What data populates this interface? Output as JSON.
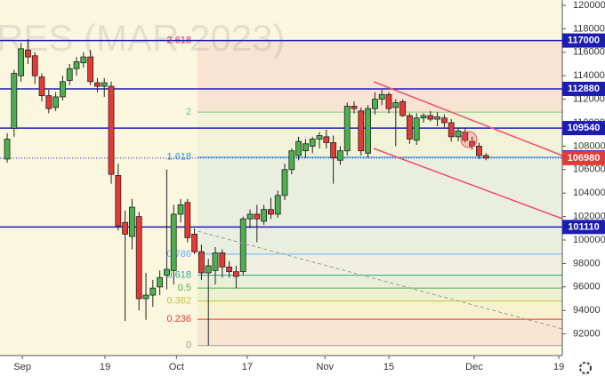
{
  "chart_data": {
    "type": "candlestick",
    "watermark": "RES (MAR 2023)",
    "xlim": [
      -1.03,
      80
    ],
    "xticks": [
      {
        "value": 2.2,
        "label": "Sep"
      },
      {
        "value": 14.1,
        "label": "19"
      },
      {
        "value": 24.4,
        "label": "Oct"
      },
      {
        "value": 34.6,
        "label": "17"
      },
      {
        "value": 45.8,
        "label": "Nov"
      },
      {
        "value": 55.0,
        "label": "15"
      },
      {
        "value": 67.3,
        "label": "Dec"
      },
      {
        "value": 79.5,
        "label": "19"
      }
    ],
    "ylim": [
      90152,
      120455
    ],
    "yticks": [
      92000,
      94000,
      96000,
      98000,
      100000,
      102000,
      104000,
      106000,
      108000,
      110000,
      112000,
      114000,
      116000,
      118000,
      120000
    ],
    "up_color": "#4caf50",
    "down_color": "#e53935",
    "open": [
      106900,
      109500,
      114000,
      116200,
      115700,
      113900,
      112300,
      111300,
      112200,
      113600,
      114600,
      115100,
      115600,
      113400,
      113100,
      113100,
      105500,
      101500,
      100300,
      102000,
      95000,
      95300,
      96000,
      97000,
      97400,
      102200,
      103200,
      100500,
      99000,
      97200,
      97400,
      98900,
      97700,
      97300,
      97300,
      101800,
      102200,
      101600,
      102600,
      102200,
      103800,
      106000,
      107200,
      107600,
      108000,
      108600,
      108800,
      108300,
      106800,
      107600,
      111400,
      111000,
      107400,
      111200,
      112000,
      112400,
      111300,
      111800,
      110600,
      108500,
      110400,
      110600,
      110300,
      110400,
      110000,
      108800,
      109200,
      108400,
      108000,
      107200
    ],
    "high": [
      109100,
      114500,
      116800,
      117100,
      116000,
      114200,
      112800,
      112600,
      114000,
      115000,
      115600,
      116000,
      116200,
      113800,
      113800,
      113500,
      106500,
      102500,
      103500,
      102400,
      97200,
      96600,
      97400,
      106000,
      103000,
      103500,
      103500,
      101000,
      99600,
      98400,
      99400,
      99200,
      98200,
      97800,
      102000,
      102600,
      103000,
      103000,
      103600,
      104200,
      106500,
      107800,
      108800,
      108600,
      108800,
      109200,
      109400,
      108900,
      108000,
      111700,
      111800,
      111300,
      111500,
      112600,
      112800,
      112600,
      112000,
      112000,
      110800,
      110800,
      110800,
      111000,
      110900,
      110700,
      110300,
      109600,
      109600,
      108800,
      108300,
      107400
    ],
    "low": [
      106600,
      108800,
      113500,
      115000,
      113300,
      111800,
      110800,
      111000,
      111900,
      113200,
      114000,
      114700,
      113200,
      112600,
      112200,
      104800,
      100800,
      93100,
      99200,
      94000,
      93200,
      94300,
      95300,
      95800,
      96200,
      101500,
      99800,
      98800,
      96600,
      91000,
      96200,
      96800,
      96800,
      95900,
      97000,
      101000,
      99800,
      101300,
      101800,
      101900,
      103400,
      105600,
      106800,
      107000,
      107400,
      107800,
      107800,
      104800,
      106400,
      107200,
      110800,
      107200,
      107000,
      110700,
      111500,
      110800,
      108000,
      110500,
      108200,
      108100,
      110000,
      110100,
      109700,
      109600,
      108400,
      108400,
      108300,
      107700,
      106900,
      106800
    ],
    "close": [
      108600,
      114200,
      116300,
      115600,
      114000,
      112300,
      111200,
      112200,
      113500,
      114600,
      115200,
      115600,
      113500,
      113100,
      113400,
      105600,
      101200,
      100500,
      102800,
      95000,
      95300,
      95900,
      96800,
      97500,
      102200,
      103000,
      100200,
      99000,
      97200,
      97800,
      98900,
      97700,
      97300,
      96900,
      101800,
      102200,
      101800,
      102600,
      102200,
      103800,
      106000,
      107600,
      108400,
      108200,
      108600,
      108900,
      108300,
      107000,
      107600,
      111400,
      111200,
      107600,
      111200,
      112000,
      112400,
      111200,
      111700,
      110600,
      108600,
      110400,
      110600,
      110300,
      110500,
      110000,
      108800,
      109300,
      108500,
      108000,
      107200,
      106980
    ],
    "level_line_color": "#1c1cb4",
    "levels": [
      {
        "value": 117000,
        "color": "#1c1cb4",
        "line": true,
        "dash": false
      },
      {
        "value": 112880,
        "color": "#1c1cb4",
        "line": true,
        "dash": false
      },
      {
        "value": 109540,
        "color": "#1c1cb4",
        "line": true,
        "dash": false
      },
      {
        "value": 107040,
        "color": "#1c1cb4",
        "line": false,
        "dash": false
      },
      {
        "value": 106980,
        "color": "#e53935",
        "line": true,
        "dash": true
      },
      {
        "value": 101110,
        "color": "#1c1cb4",
        "line": true,
        "dash": false
      }
    ],
    "fib": [
      {
        "ratio": 2.618,
        "price": 117000,
        "color": "#e91e63"
      },
      {
        "ratio": 2,
        "price": 110900,
        "color": "#81c784"
      },
      {
        "ratio": 1.618,
        "price": 107060,
        "color": "#2196f3"
      },
      {
        "ratio": 0.786,
        "price": 98800,
        "color": "#64b5f6"
      },
      {
        "ratio": 0.618,
        "price": 97000,
        "color": "#26a69a"
      },
      {
        "ratio": 0.5,
        "price": 95900,
        "color": "#4caf50"
      },
      {
        "ratio": 0.382,
        "price": 94800,
        "color": "#c0ca33"
      },
      {
        "ratio": 0.236,
        "price": 93250,
        "color": "#e53935"
      },
      {
        "ratio": 0,
        "price": 91000,
        "color": "#9e9e9e"
      }
    ]
  }
}
